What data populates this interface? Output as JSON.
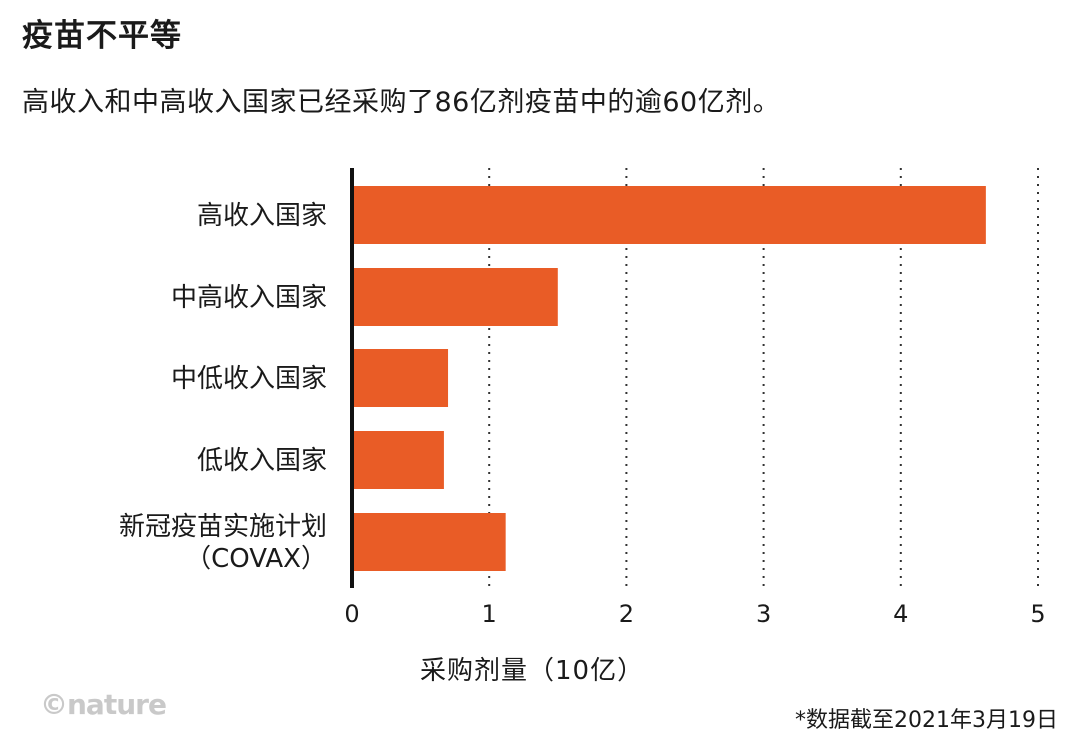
{
  "title": "疫苗不平等",
  "subtitle": "高收入和中高收入国家已经采购了86亿剂疫苗中的逾60亿剂。",
  "logo": "©nature",
  "footnote": "*数据截至2021年3月19日",
  "colors": {
    "bar": "#E95C26",
    "axis": "#111111",
    "grid": "#333333"
  },
  "chart_data": {
    "type": "bar",
    "orientation": "horizontal",
    "categories": [
      [
        "高收入国家"
      ],
      [
        "中高收入国家"
      ],
      [
        "中低收入国家"
      ],
      [
        "低收入国家"
      ],
      [
        "新冠疫苗实施计划",
        "（COVAX）"
      ]
    ],
    "values": [
      4.62,
      1.5,
      0.7,
      0.67,
      1.12
    ],
    "xlabel": "采购剂量（10亿）",
    "xlim": [
      0,
      5
    ],
    "xticks": [
      0,
      1,
      2,
      3,
      4,
      5
    ],
    "grid": "vertical dotted"
  }
}
